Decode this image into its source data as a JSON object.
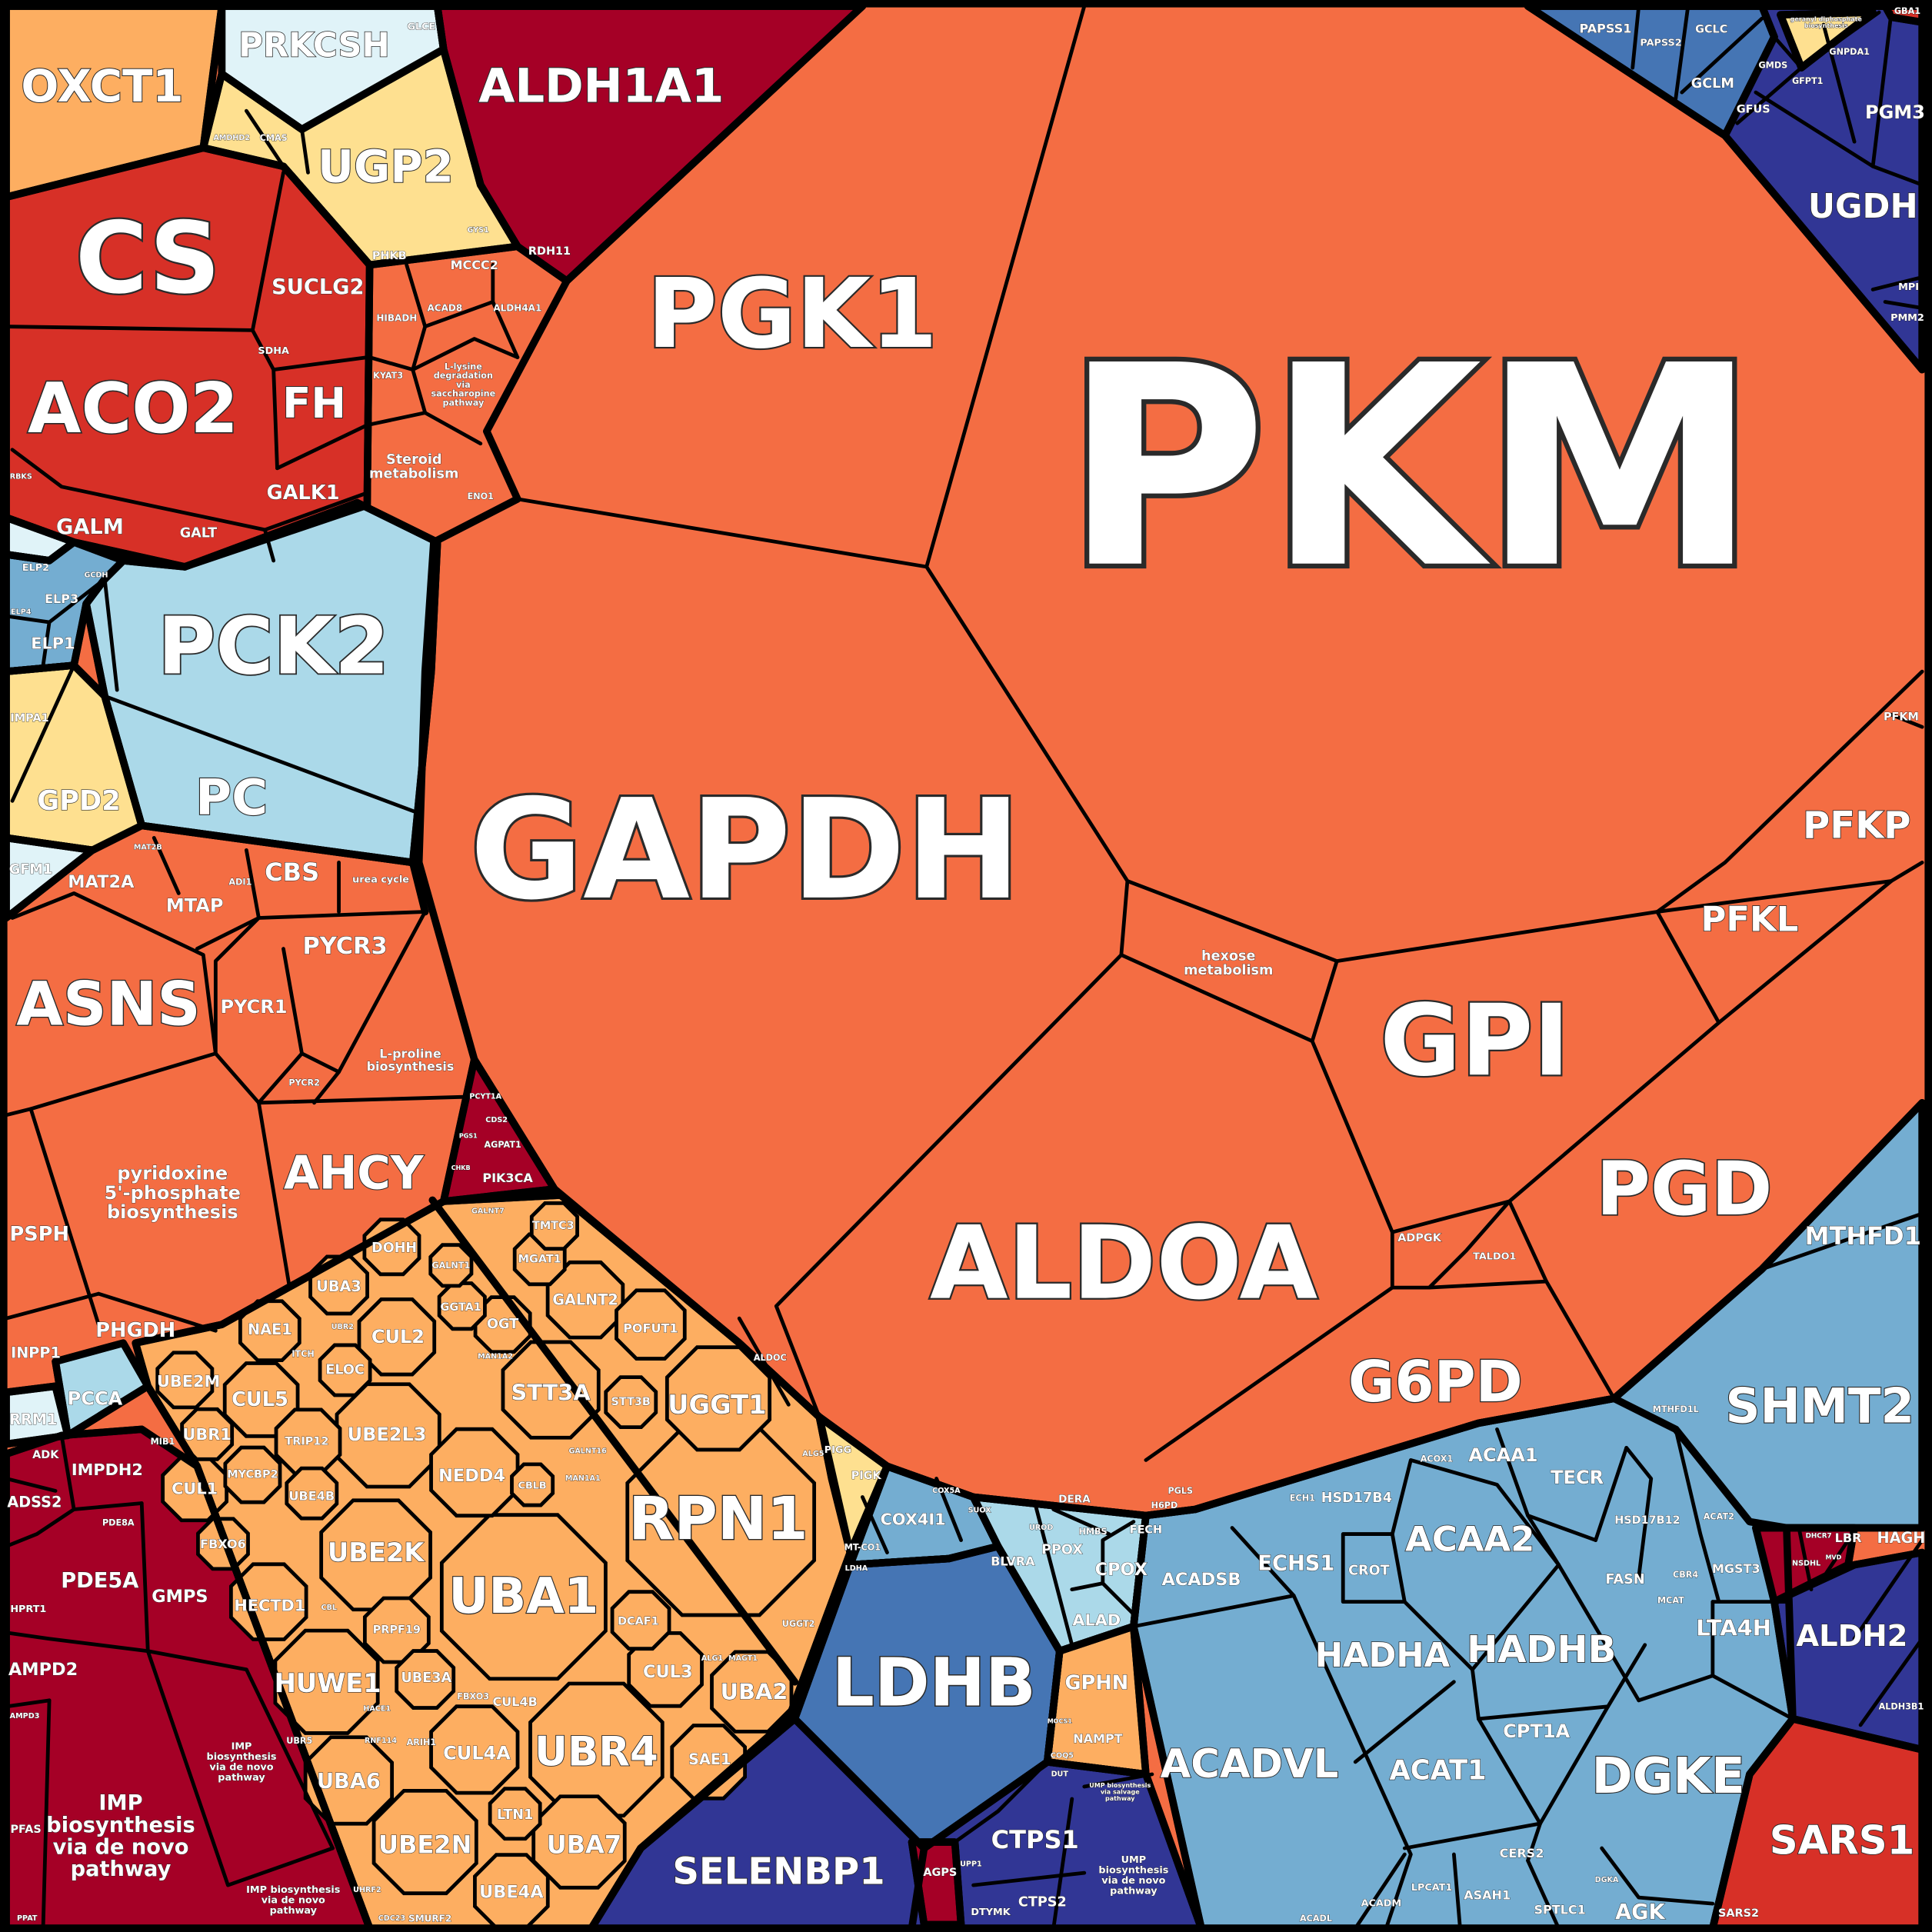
{
  "chart_data": {
    "type": "treemap",
    "subtype": "voronoi-treemap",
    "palette": {
      "dark-red": "#A50026",
      "red": "#D73027",
      "orange": "#F46D43",
      "light-orange": "#FDAE61",
      "yellow": "#FEE090",
      "pale-blue": "#E0F3F8",
      "light-blue": "#ABD9E9",
      "blue": "#74ADD1",
      "mid-blue": "#4575B4",
      "navy": "#313695",
      "border": "#000000",
      "text": "#FFFFFF"
    },
    "cells": [
      {
        "label": "PKM",
        "color": "orange"
      },
      {
        "label": "PGK1",
        "color": "orange"
      },
      {
        "label": "GAPDH",
        "color": "orange"
      },
      {
        "label": "GPI",
        "color": "orange"
      },
      {
        "label": "ALDOA",
        "color": "orange"
      },
      {
        "label": "PGD",
        "color": "orange"
      },
      {
        "label": "G6PD",
        "color": "orange"
      },
      {
        "label": "PFKP",
        "color": "orange"
      },
      {
        "label": "PFKL",
        "color": "orange"
      },
      {
        "label": "PFKM",
        "color": "orange"
      },
      {
        "label": "hexose metabolism",
        "color": "orange"
      },
      {
        "label": "ADPGK",
        "color": "orange"
      },
      {
        "label": "TALDO1",
        "color": "orange"
      },
      {
        "label": "ALDOC",
        "color": "orange"
      },
      {
        "label": "OXCT1",
        "color": "light-orange"
      },
      {
        "label": "PRKCSH",
        "color": "pale-blue"
      },
      {
        "label": "GLCE",
        "color": "pale-blue"
      },
      {
        "label": "ALDH1A1",
        "color": "dark-red"
      },
      {
        "label": "UGP2",
        "color": "yellow"
      },
      {
        "label": "AMDHD2",
        "color": "yellow"
      },
      {
        "label": "CMAS",
        "color": "yellow"
      },
      {
        "label": "GYS1",
        "color": "yellow"
      },
      {
        "label": "PHKB",
        "color": "yellow"
      },
      {
        "label": "CS",
        "color": "red"
      },
      {
        "label": "SUCLG2",
        "color": "red"
      },
      {
        "label": "SDHA",
        "color": "red"
      },
      {
        "label": "ACO2",
        "color": "red"
      },
      {
        "label": "FH",
        "color": "red"
      },
      {
        "label": "GALK1",
        "color": "red"
      },
      {
        "label": "GALM",
        "color": "red"
      },
      {
        "label": "GALT",
        "color": "red"
      },
      {
        "label": "RBKS",
        "color": "red"
      },
      {
        "label": "RDH11",
        "color": "dark-red"
      },
      {
        "label": "MCCC2",
        "color": "orange"
      },
      {
        "label": "HIBADH",
        "color": "orange"
      },
      {
        "label": "ACAD8",
        "color": "orange"
      },
      {
        "label": "ALDH4A1",
        "color": "orange"
      },
      {
        "label": "KYAT3",
        "color": "orange"
      },
      {
        "label": "L-lysine degradation via saccharopine pathway",
        "color": "orange"
      },
      {
        "label": "Steroid metabolism",
        "color": "orange"
      },
      {
        "label": "ENO1",
        "color": "orange"
      },
      {
        "label": "ELP2",
        "color": "blue"
      },
      {
        "label": "ELP3",
        "color": "blue"
      },
      {
        "label": "ELP4",
        "color": "blue"
      },
      {
        "label": "ELP1",
        "color": "blue"
      },
      {
        "label": "GCDH",
        "color": "blue"
      },
      {
        "label": "PCK2",
        "color": "light-blue"
      },
      {
        "label": "PC",
        "color": "light-blue"
      },
      {
        "label": "IMPA1",
        "color": "yellow"
      },
      {
        "label": "GPD2",
        "color": "yellow"
      },
      {
        "label": "GFM1",
        "color": "pale-blue"
      },
      {
        "label": "MAT2A",
        "color": "orange"
      },
      {
        "label": "MAT2B",
        "color": "orange"
      },
      {
        "label": "MTAP",
        "color": "orange"
      },
      {
        "label": "CBS",
        "color": "orange"
      },
      {
        "label": "ADI1",
        "color": "orange"
      },
      {
        "label": "urea cycle",
        "color": "orange"
      },
      {
        "label": "ASNS",
        "color": "orange"
      },
      {
        "label": "PYCR1",
        "color": "orange"
      },
      {
        "label": "PYCR3",
        "color": "orange"
      },
      {
        "label": "PYCR2",
        "color": "orange"
      },
      {
        "label": "L-proline biosynthesis",
        "color": "orange"
      },
      {
        "label": "pyridoxine 5'-phosphate biosynthesis",
        "color": "orange"
      },
      {
        "label": "AHCY",
        "color": "orange"
      },
      {
        "label": "PSPH",
        "color": "orange"
      },
      {
        "label": "PHGDH",
        "color": "orange"
      },
      {
        "label": "INPP1",
        "color": "orange"
      },
      {
        "label": "PIK3CA",
        "color": "dark-red"
      },
      {
        "label": "CDS2",
        "color": "dark-red"
      },
      {
        "label": "AGPAT1",
        "color": "dark-red"
      },
      {
        "label": "PCYT1A",
        "color": "dark-red"
      },
      {
        "label": "PGS1",
        "color": "dark-red"
      },
      {
        "label": "CHKB",
        "color": "dark-red"
      },
      {
        "label": "PCCA",
        "color": "light-blue"
      },
      {
        "label": "RRM1",
        "color": "pale-blue"
      },
      {
        "label": "ADK",
        "color": "dark-red"
      },
      {
        "label": "IMPDH2",
        "color": "dark-red"
      },
      {
        "label": "ADSS2",
        "color": "dark-red"
      },
      {
        "label": "PDE5A",
        "color": "dark-red"
      },
      {
        "label": "PDE8A",
        "color": "dark-red"
      },
      {
        "label": "GMPS",
        "color": "dark-red"
      },
      {
        "label": "HPRT1",
        "color": "dark-red"
      },
      {
        "label": "AMPD2",
        "color": "dark-red"
      },
      {
        "label": "AMPD3",
        "color": "dark-red"
      },
      {
        "label": "PFAS",
        "color": "dark-red"
      },
      {
        "label": "IMP biosynthesis via de novo pathway",
        "color": "dark-red"
      },
      {
        "label": "IMP biosynthesis via de novo pathway",
        "color": "dark-red"
      },
      {
        "label": "IMP biosynthesis via de novo pathway",
        "color": "dark-red"
      },
      {
        "label": "PPAT",
        "color": "dark-red"
      },
      {
        "label": "UBA1",
        "color": "light-orange"
      },
      {
        "label": "RPN1",
        "color": "light-orange"
      },
      {
        "label": "UBR4",
        "color": "light-orange"
      },
      {
        "label": "UBE2K",
        "color": "light-orange"
      },
      {
        "label": "UBE2L3",
        "color": "light-orange"
      },
      {
        "label": "NEDD4",
        "color": "light-orange"
      },
      {
        "label": "CBLB",
        "color": "light-orange"
      },
      {
        "label": "STT3A",
        "color": "light-orange"
      },
      {
        "label": "STT3B",
        "color": "light-orange"
      },
      {
        "label": "UGGT1",
        "color": "light-orange"
      },
      {
        "label": "HUWE1",
        "color": "light-orange"
      },
      {
        "label": "UBE2N",
        "color": "light-orange"
      },
      {
        "label": "UBA7",
        "color": "light-orange"
      },
      {
        "label": "UBE4A",
        "color": "light-orange"
      },
      {
        "label": "LTN1",
        "color": "light-orange"
      },
      {
        "label": "CUL4A",
        "color": "light-orange"
      },
      {
        "label": "UBA6",
        "color": "light-orange"
      },
      {
        "label": "UBA2",
        "color": "light-orange"
      },
      {
        "label": "CUL3",
        "color": "light-orange"
      },
      {
        "label": "SAE1",
        "color": "light-orange"
      },
      {
        "label": "DCAF1",
        "color": "light-orange"
      },
      {
        "label": "UGGT2",
        "color": "light-orange"
      },
      {
        "label": "ALG1",
        "color": "light-orange"
      },
      {
        "label": "MAGT1",
        "color": "light-orange"
      },
      {
        "label": "HECTD1",
        "color": "light-orange"
      },
      {
        "label": "CBL",
        "color": "light-orange"
      },
      {
        "label": "PRPF19",
        "color": "light-orange"
      },
      {
        "label": "UBE3A",
        "color": "light-orange"
      },
      {
        "label": "FBXO3",
        "color": "light-orange"
      },
      {
        "label": "CUL4B",
        "color": "light-orange"
      },
      {
        "label": "HACE1",
        "color": "light-orange"
      },
      {
        "label": "ARIH1",
        "color": "light-orange"
      },
      {
        "label": "RNF114",
        "color": "light-orange"
      },
      {
        "label": "UBR5",
        "color": "light-orange"
      },
      {
        "label": "CUL1",
        "color": "light-orange"
      },
      {
        "label": "MYCBP2",
        "color": "light-orange"
      },
      {
        "label": "UBE4B",
        "color": "light-orange"
      },
      {
        "label": "FBXO6",
        "color": "light-orange"
      },
      {
        "label": "TRIP12",
        "color": "light-orange"
      },
      {
        "label": "CUL5",
        "color": "light-orange"
      },
      {
        "label": "UBR1",
        "color": "light-orange"
      },
      {
        "label": "MIB1",
        "color": "light-orange"
      },
      {
        "label": "UBE2M",
        "color": "light-orange"
      },
      {
        "label": "NAE1",
        "color": "light-orange"
      },
      {
        "label": "ITCH",
        "color": "light-orange"
      },
      {
        "label": "ELOC",
        "color": "light-orange"
      },
      {
        "label": "CUL2",
        "color": "light-orange"
      },
      {
        "label": "UBR2",
        "color": "light-orange"
      },
      {
        "label": "UBA3",
        "color": "light-orange"
      },
      {
        "label": "DOHH",
        "color": "light-orange"
      },
      {
        "label": "OGT",
        "color": "light-orange"
      },
      {
        "label": "GGTA1",
        "color": "light-orange"
      },
      {
        "label": "GALNT1",
        "color": "light-orange"
      },
      {
        "label": "GALNT2",
        "color": "light-orange"
      },
      {
        "label": "MGAT1",
        "color": "light-orange"
      },
      {
        "label": "TMTC3",
        "color": "light-orange"
      },
      {
        "label": "POFUT1",
        "color": "light-orange"
      },
      {
        "label": "GALNT7",
        "color": "light-orange"
      },
      {
        "label": "MAN1A2",
        "color": "light-orange"
      },
      {
        "label": "GALNT16",
        "color": "light-orange"
      },
      {
        "label": "MAN1A1",
        "color": "light-orange"
      },
      {
        "label": "SMURF2",
        "color": "light-orange"
      },
      {
        "label": "CDC23",
        "color": "light-orange"
      },
      {
        "label": "UHRF2",
        "color": "light-orange"
      },
      {
        "label": "ALG5",
        "color": "light-orange"
      },
      {
        "label": "PIGG",
        "color": "yellow"
      },
      {
        "label": "PIGK",
        "color": "yellow"
      },
      {
        "label": "MT-CO1",
        "color": "blue"
      },
      {
        "label": "LDHA",
        "color": "blue"
      },
      {
        "label": "COX4I1",
        "color": "blue"
      },
      {
        "label": "COX5A",
        "color": "blue"
      },
      {
        "label": "SUOX",
        "color": "blue"
      },
      {
        "label": "LDHB",
        "color": "mid-blue"
      },
      {
        "label": "BLVRA",
        "color": "light-blue"
      },
      {
        "label": "PPOX",
        "color": "light-blue"
      },
      {
        "label": "CPOX",
        "color": "light-blue"
      },
      {
        "label": "ALAD",
        "color": "light-blue"
      },
      {
        "label": "HMBS",
        "color": "light-blue"
      },
      {
        "label": "UROD",
        "color": "light-blue"
      },
      {
        "label": "FECH",
        "color": "light-blue"
      },
      {
        "label": "DERA",
        "color": "orange"
      },
      {
        "label": "PGLS",
        "color": "orange"
      },
      {
        "label": "H6PD",
        "color": "orange"
      },
      {
        "label": "GPHN",
        "color": "light-orange"
      },
      {
        "label": "NAMPT",
        "color": "light-orange"
      },
      {
        "label": "COQ5",
        "color": "light-orange"
      },
      {
        "label": "MOCS1",
        "color": "light-orange"
      },
      {
        "label": "DUT",
        "color": "navy"
      },
      {
        "label": "SELENBP1",
        "color": "navy"
      },
      {
        "label": "AGPS",
        "color": "dark-red"
      },
      {
        "label": "UPP1",
        "color": "navy"
      },
      {
        "label": "DTYMK",
        "color": "navy"
      },
      {
        "label": "CTPS1",
        "color": "navy"
      },
      {
        "label": "CTPS2",
        "color": "navy"
      },
      {
        "label": "UMP biosynthesis via de novo pathway",
        "color": "navy"
      },
      {
        "label": "UMP biosynthesis via salvage pathway",
        "color": "navy"
      },
      {
        "label": "ACADVL",
        "color": "blue"
      },
      {
        "label": "ACADSB",
        "color": "blue"
      },
      {
        "label": "ECHS1",
        "color": "blue"
      },
      {
        "label": "CROT",
        "color": "blue"
      },
      {
        "label": "HSD17B4",
        "color": "blue"
      },
      {
        "label": "ECH1",
        "color": "blue"
      },
      {
        "label": "ACAA2",
        "color": "blue"
      },
      {
        "label": "ACAA1",
        "color": "blue"
      },
      {
        "label": "ACOX1",
        "color": "blue"
      },
      {
        "label": "TECR",
        "color": "blue"
      },
      {
        "label": "HADHA",
        "color": "blue"
      },
      {
        "label": "HADHB",
        "color": "blue"
      },
      {
        "label": "CPT1A",
        "color": "blue"
      },
      {
        "label": "ACAT1",
        "color": "blue"
      },
      {
        "label": "DGKE",
        "color": "blue"
      },
      {
        "label": "HSD17B12",
        "color": "blue"
      },
      {
        "label": "MTHFD1L",
        "color": "blue"
      },
      {
        "label": "ACAT2",
        "color": "blue"
      },
      {
        "label": "FASN",
        "color": "blue"
      },
      {
        "label": "CBR4",
        "color": "blue"
      },
      {
        "label": "MGST3",
        "color": "blue"
      },
      {
        "label": "MCAT",
        "color": "blue"
      },
      {
        "label": "LTA4H",
        "color": "blue"
      },
      {
        "label": "SHMT2",
        "color": "blue"
      },
      {
        "label": "MTHFD1",
        "color": "blue"
      },
      {
        "label": "HAGH",
        "color": "blue"
      },
      {
        "label": "ALDH2",
        "color": "navy"
      },
      {
        "label": "ALDH3B1",
        "color": "navy"
      },
      {
        "label": "LBR",
        "color": "dark-red"
      },
      {
        "label": "DHCR7",
        "color": "dark-red"
      },
      {
        "label": "NSDHL",
        "color": "dark-red"
      },
      {
        "label": "MVD",
        "color": "dark-red"
      },
      {
        "label": "SARS1",
        "color": "red"
      },
      {
        "label": "SARS2",
        "color": "red"
      },
      {
        "label": "AGK",
        "color": "blue"
      },
      {
        "label": "SPTLC1",
        "color": "blue"
      },
      {
        "label": "ASAH1",
        "color": "blue"
      },
      {
        "label": "CERS2",
        "color": "blue"
      },
      {
        "label": "LPCAT1",
        "color": "blue"
      },
      {
        "label": "ACADM",
        "color": "blue"
      },
      {
        "label": "ACADL",
        "color": "blue"
      },
      {
        "label": "DGKA",
        "color": "blue"
      },
      {
        "label": "PAPSS1",
        "color": "mid-blue"
      },
      {
        "label": "PAPSS2",
        "color": "mid-blue"
      },
      {
        "label": "GCLC",
        "color": "mid-blue"
      },
      {
        "label": "GCLM",
        "color": "mid-blue"
      },
      {
        "label": "GFUS",
        "color": "navy"
      },
      {
        "label": "GMDS",
        "color": "navy"
      },
      {
        "label": "GFPT1",
        "color": "navy"
      },
      {
        "label": "GNPDA1",
        "color": "navy"
      },
      {
        "label": "PGM3",
        "color": "navy"
      },
      {
        "label": "UGDH",
        "color": "navy"
      },
      {
        "label": "MPI",
        "color": "navy"
      },
      {
        "label": "PMM2",
        "color": "navy"
      },
      {
        "label": "GBA1",
        "color": "red"
      },
      {
        "label": "geranyl diphosphate biosynthesis",
        "color": "yellow"
      }
    ]
  }
}
